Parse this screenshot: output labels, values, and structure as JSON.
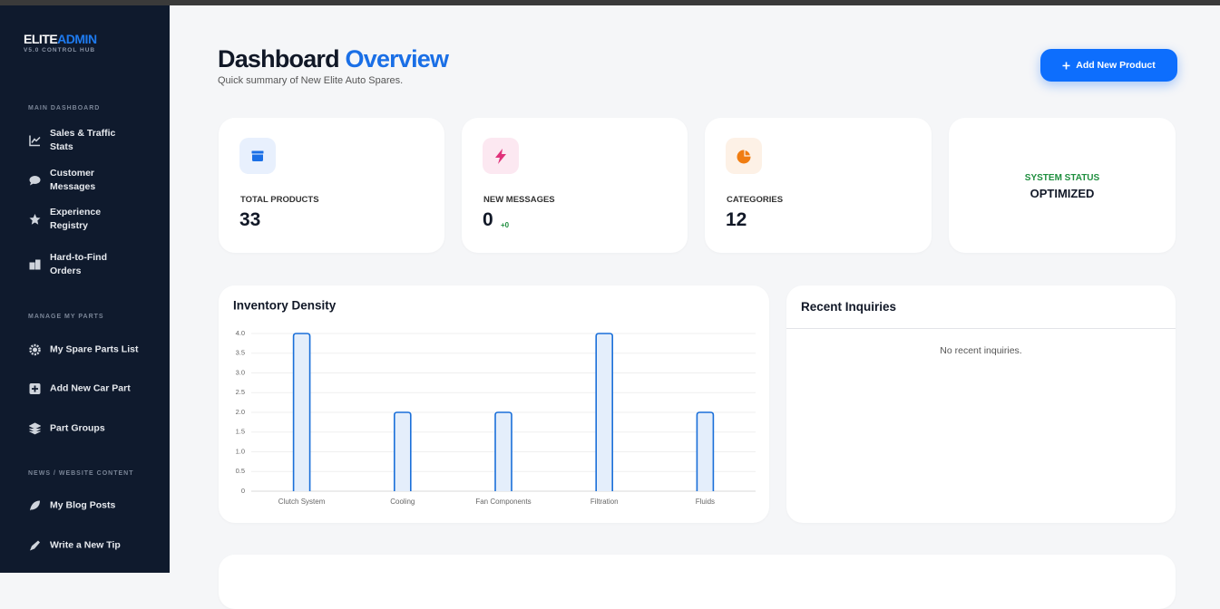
{
  "sidebar": {
    "brand": {
      "part1": "ELITE",
      "part2": "ADMIN",
      "version": "V5.0 CONTROL HUB"
    },
    "sections": [
      {
        "title": "MAIN DASHBOARD",
        "items": [
          "Sales & Traffic Stats",
          "Customer Messages",
          "Experience Registry",
          "Hard-to-Find Orders"
        ]
      },
      {
        "title": "MANAGE MY PARTS",
        "items": [
          "My Spare Parts List",
          "Add New Car Part",
          "Part Groups"
        ]
      },
      {
        "title": "NEWS / WEBSITE CONTENT",
        "items": [
          "My Blog Posts",
          "Write a New Tip"
        ]
      }
    ]
  },
  "header": {
    "title": "Dashboard",
    "title_accent": "Overview",
    "subtitle": "Quick summary of New Elite Auto Spares.",
    "button": "Add New Product"
  },
  "stats": [
    {
      "label": "TOTAL PRODUCTS",
      "value": 33
    },
    {
      "label": "NEW MESSAGES",
      "value": 0,
      "delta": "+0"
    },
    {
      "label": "CATEGORIES",
      "value": 12
    },
    {
      "label": "SYSTEM STATUS",
      "value": "OPTIMIZED"
    }
  ],
  "chart_data": {
    "type": "bar",
    "title": "Inventory Density",
    "categories": [
      "Clutch System",
      "Cooling",
      "Fan Components",
      "Filtration",
      "Fluids"
    ],
    "values": [
      4,
      2,
      2,
      4,
      2
    ],
    "color": "#e4eefb",
    "border_color": "#1a6fd9",
    "ylim": [
      0,
      4
    ],
    "yticks": [
      0,
      0.5,
      {
        "value": 1,
        "label": "1.0"
      },
      1.5,
      {
        "value": 2,
        "label": "2.0"
      },
      2.5,
      {
        "value": 3,
        "label": "3.0"
      },
      3.5,
      {
        "value": 4,
        "label": "4.0"
      }
    ],
    "grid": true
  },
  "inquiries": {
    "title": "Recent Inquiries",
    "empty": "No recent inquiries."
  }
}
